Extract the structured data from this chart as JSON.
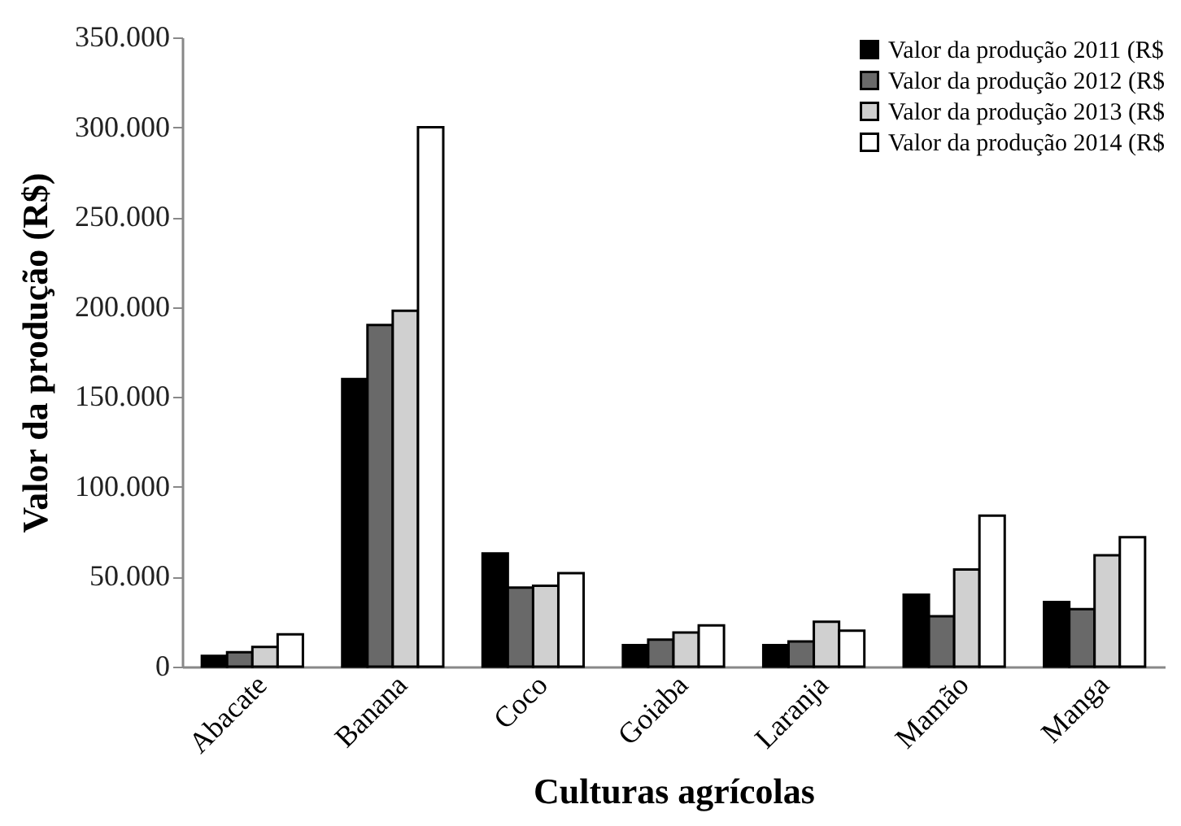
{
  "chart_data": {
    "type": "bar",
    "xlabel": "Culturas agrícolas",
    "ylabel": "Valor da produção (R$)",
    "categories": [
      "Abacate",
      "Banana",
      "Coco",
      "Goiaba",
      "Laranja",
      "Mamão",
      "Manga"
    ],
    "series": [
      {
        "name": "Valor da produção 2011 (R$",
        "color": "#000000",
        "values": [
          6000,
          160000,
          63000,
          12000,
          12000,
          40000,
          36000
        ]
      },
      {
        "name": "Valor da produção 2012 (R$",
        "color": "#696969",
        "values": [
          8000,
          190000,
          44000,
          15000,
          14000,
          28000,
          32000
        ]
      },
      {
        "name": "Valor da produção 2013 (R$",
        "color": "#d0d0d0",
        "values": [
          11000,
          198000,
          45000,
          19000,
          25000,
          54000,
          62000
        ]
      },
      {
        "name": "Valor da produção 2014 (R$",
        "color": "#ffffff",
        "values": [
          18000,
          300000,
          52000,
          23000,
          20000,
          84000,
          72000
        ]
      }
    ],
    "ylim": [
      0,
      350000
    ],
    "yticks": [
      {
        "value": 0,
        "label": "0"
      },
      {
        "value": 50000,
        "label": "50.000"
      },
      {
        "value": 100000,
        "label": "100.000"
      },
      {
        "value": 150000,
        "label": "150.000"
      },
      {
        "value": 200000,
        "label": "200.000"
      },
      {
        "value": 250000,
        "label": "250.000"
      },
      {
        "value": 300000,
        "label": "300.000"
      },
      {
        "value": 350000,
        "label": "350.000"
      }
    ],
    "grid": false,
    "legend": "top right"
  }
}
